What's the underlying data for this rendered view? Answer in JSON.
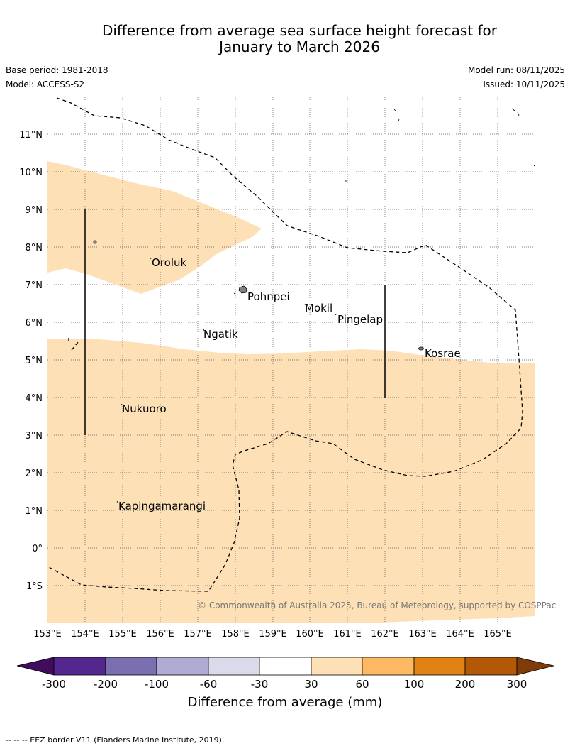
{
  "title": {
    "line1": "Difference from average sea surface height forecast for",
    "line2": "January to March 2026"
  },
  "meta": {
    "base_period": "Base period: 1981-2018",
    "model": "Model: ACCESS-S2",
    "model_run": "Model run: 08/11/2025",
    "issued": "Issued: 10/11/2025"
  },
  "map": {
    "lon_labels": [
      "153°E",
      "154°E",
      "155°E",
      "156°E",
      "157°E",
      "158°E",
      "159°E",
      "160°E",
      "161°E",
      "162°E",
      "163°E",
      "164°E",
      "165°E"
    ],
    "lat_labels": [
      "11°N",
      "10°N",
      "9°N",
      "8°N",
      "7°N",
      "6°N",
      "5°N",
      "4°N",
      "3°N",
      "2°N",
      "1°N",
      "0°",
      "1°S"
    ],
    "places": [
      "Oroluk",
      "Pohnpei",
      "Mokil",
      "Pingelap",
      "Ngatik",
      "Kosrae",
      "Nukuoro",
      "Kapingamarangi"
    ],
    "copyright": "© Commonwealth of Australia 2025, Bureau of Meteorology, supported by COSPPac",
    "colors": {
      "anomaly_30_60": "#fde0b6",
      "land": "#808080",
      "grid": "#555555"
    }
  },
  "colorbar": {
    "ticks": [
      "-300",
      "-200",
      "-100",
      "-60",
      "-30",
      "30",
      "60",
      "100",
      "200",
      "300"
    ],
    "label": "Difference from average (mm)",
    "colors": [
      "#3f0d5c",
      "#54278f",
      "#7b6faf",
      "#b0abd3",
      "#dadaeb",
      "#ffffff",
      "#fde0b6",
      "#fdb863",
      "#e08214",
      "#b35806",
      "#7f3b08"
    ]
  },
  "footer": "-- -- -- EEZ border V11 (Flanders Marine Institute, 2019)."
}
